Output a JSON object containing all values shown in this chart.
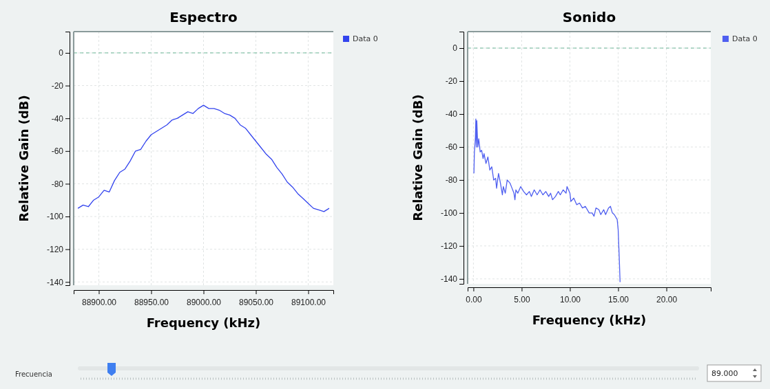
{
  "chart_data": [
    {
      "type": "line",
      "title": "Espectro",
      "xlabel": "Frequency (kHz)",
      "ylabel": "Relative Gain (dB)",
      "legend": "top right",
      "grid": true,
      "line_style": "solid",
      "xlim": [
        88876,
        89124
      ],
      "ylim": [
        -142,
        13
      ],
      "xticks": [
        {
          "value": 88900,
          "label": "88900.00"
        },
        {
          "value": 88950,
          "label": "88950.00"
        },
        {
          "value": 89000,
          "label": "89000.00"
        },
        {
          "value": 89050,
          "label": "89050.00"
        },
        {
          "value": 89100,
          "label": "89100.00"
        }
      ],
      "yticks": [
        0,
        -20,
        -40,
        -60,
        -80,
        -100,
        -120,
        -140
      ],
      "ref_lines": [
        {
          "axis": "y",
          "value": 0,
          "color": "#6fb89a",
          "line_style": "dashed"
        }
      ],
      "x": [
        88880,
        88885,
        88890,
        88895,
        88900,
        88905,
        88910,
        88915,
        88920,
        88925,
        88930,
        88935,
        88940,
        88945,
        88950,
        88955,
        88960,
        88965,
        88970,
        88975,
        88980,
        88985,
        88990,
        88995,
        89000,
        89005,
        89010,
        89015,
        89020,
        89025,
        89030,
        89035,
        89040,
        89045,
        89050,
        89055,
        89060,
        89065,
        89070,
        89075,
        89080,
        89085,
        89090,
        89095,
        89100,
        89105,
        89110,
        89115,
        89120
      ],
      "series": [
        {
          "name": "Data 0",
          "color": "#3344ee",
          "values": [
            -95,
            -93,
            -94,
            -90,
            -88,
            -84,
            -85,
            -78,
            -73,
            -71,
            -66,
            -60,
            -59,
            -54,
            -50,
            -48,
            -46,
            -44,
            -41,
            -40,
            -38,
            -36,
            -37,
            -34,
            -32,
            -34,
            -34,
            -35,
            -37,
            -38,
            -40,
            -44,
            -46,
            -50,
            -54,
            -58,
            -62,
            -65,
            -70,
            -74,
            -79,
            -82,
            -86,
            -89,
            -92,
            -95,
            -96,
            -97,
            -95
          ]
        }
      ]
    },
    {
      "type": "line",
      "title": "Sonido",
      "xlabel": "Frequency (kHz)",
      "ylabel": "Relative Gain (dB)",
      "legend": "top right",
      "grid": true,
      "line_style": "solid",
      "xlim": [
        -0.6,
        24.6
      ],
      "ylim": [
        -143,
        10
      ],
      "xticks": [
        {
          "value": 0,
          "label": "0.00"
        },
        {
          "value": 5,
          "label": "5.00"
        },
        {
          "value": 10,
          "label": "10.00"
        },
        {
          "value": 15,
          "label": "15.00"
        },
        {
          "value": 20,
          "label": "20.00"
        }
      ],
      "yticks": [
        0,
        -20,
        -40,
        -60,
        -80,
        -100,
        -120,
        -140
      ],
      "ref_lines": [
        {
          "axis": "y",
          "value": 0,
          "color": "#6fb89a",
          "line_style": "dashed"
        }
      ],
      "x": [
        0.05,
        0.1,
        0.2,
        0.25,
        0.3,
        0.35,
        0.45,
        0.55,
        0.7,
        0.85,
        1.0,
        1.1,
        1.3,
        1.5,
        1.7,
        1.9,
        2.1,
        2.3,
        2.4,
        2.6,
        2.8,
        3.0,
        3.1,
        3.3,
        3.5,
        3.8,
        4.0,
        4.2,
        4.3,
        4.4,
        4.6,
        4.9,
        5.2,
        5.5,
        5.8,
        6.0,
        6.3,
        6.6,
        6.9,
        7.2,
        7.5,
        7.8,
        8.0,
        8.2,
        8.5,
        8.8,
        9.0,
        9.3,
        9.6,
        9.7,
        10.0,
        10.1,
        10.4,
        10.7,
        11.0,
        11.3,
        11.6,
        12.0,
        12.3,
        12.5,
        12.7,
        13.0,
        13.2,
        13.5,
        13.7,
        14.0,
        14.2,
        14.4,
        14.6,
        14.9,
        15.0,
        15.1,
        15.2
      ],
      "series": [
        {
          "name": "Data 0",
          "color": "#4f5ff0",
          "values": [
            -76,
            -63,
            -55,
            -43,
            -60,
            -44,
            -60,
            -55,
            -63,
            -62,
            -67,
            -64,
            -70,
            -66,
            -74,
            -72,
            -80,
            -79,
            -85,
            -76,
            -82,
            -89,
            -84,
            -88,
            -80,
            -82,
            -85,
            -88,
            -92,
            -86,
            -88,
            -84,
            -87,
            -89,
            -87,
            -90,
            -86,
            -89,
            -86,
            -89,
            -87,
            -90,
            -88,
            -92,
            -90,
            -87,
            -89,
            -86,
            -88,
            -84,
            -88,
            -93,
            -91,
            -95,
            -94,
            -97,
            -96,
            -100,
            -100,
            -102,
            -97,
            -98,
            -101,
            -98,
            -101,
            -97,
            -96,
            -100,
            -101,
            -104,
            -110,
            -125,
            -142
          ]
        }
      ]
    },
    {
      "type": "other",
      "annotations": [
        "Frecuencia",
        "89.000"
      ]
    }
  ]
}
